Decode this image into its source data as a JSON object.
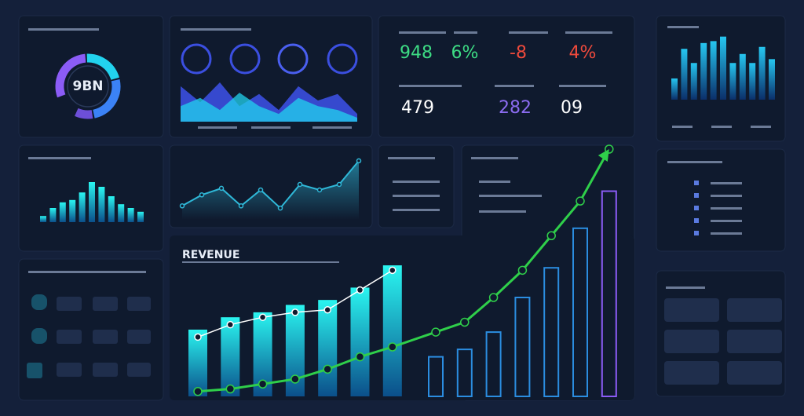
{
  "gauge": {
    "label": "9BN",
    "segments": [
      {
        "value": 30,
        "color": "#8b5cf6"
      },
      {
        "value": 22,
        "color": "#22d3ee"
      },
      {
        "value": 26,
        "color": "#3b82f6"
      },
      {
        "value": 10,
        "color": "#6d4fd8"
      }
    ]
  },
  "kpis": [
    {
      "text": "948",
      "color": "#3ddc84"
    },
    {
      "text": "6%",
      "color": "#3ddc84"
    },
    {
      "text": "-8",
      "color": "#ef4a3c"
    },
    {
      "text": "4%",
      "color": "#ef4a3c"
    },
    {
      "text": "479",
      "color": "#ffffff"
    },
    {
      "text": "282",
      "color": "#8b6cf0"
    },
    {
      "text": "09",
      "color": "#ffffff"
    }
  ],
  "top_bars": {
    "color": "#22d3ee",
    "values": [
      33,
      79,
      57,
      88,
      91,
      98,
      57,
      71,
      57,
      82,
      63
    ]
  },
  "left_bars": {
    "color": "#22e6f0",
    "values": [
      13,
      30,
      42,
      47,
      63,
      85,
      75,
      55,
      38,
      30,
      22
    ]
  },
  "area": {
    "series": [
      {
        "color": "#3b4fe0",
        "values": [
          82,
          45,
          91,
          36,
          64,
          27,
          82,
          49,
          64,
          18
        ]
      },
      {
        "color": "#22d3ee",
        "values": [
          36,
          55,
          27,
          67,
          36,
          18,
          55,
          36,
          27,
          9
        ]
      }
    ]
  },
  "line": {
    "color": "#2fb8d8",
    "values": [
      11,
      31,
      43,
      11,
      40,
      7,
      50,
      40,
      50,
      93
    ]
  },
  "revenue": {
    "title": "REVENUE",
    "ylim": [
      0,
      100
    ],
    "series": [
      {
        "type": "bar",
        "color": "#22e6f0",
        "values": [
          27,
          32,
          34,
          37,
          39,
          44,
          53,
          null,
          null,
          null,
          null,
          null,
          null,
          null
        ]
      },
      {
        "type": "bar",
        "color": "#2b8de0",
        "values": [
          null,
          null,
          null,
          null,
          null,
          null,
          null,
          16,
          19,
          26,
          40,
          52,
          68,
          null
        ]
      },
      {
        "type": "bar",
        "color": "#8b5cf6",
        "values": [
          null,
          null,
          null,
          null,
          null,
          null,
          null,
          null,
          null,
          null,
          null,
          null,
          null,
          83
        ]
      },
      {
        "type": "line",
        "color": "#ffffff",
        "values": [
          24,
          29,
          32,
          34,
          35,
          43,
          51,
          null,
          null,
          null,
          null,
          null,
          null,
          null
        ]
      },
      {
        "type": "line",
        "color": "#2fcf4a",
        "values": [
          2,
          3,
          5,
          7,
          11,
          16,
          20,
          26,
          30,
          40,
          51,
          65,
          79,
          100
        ]
      }
    ]
  }
}
